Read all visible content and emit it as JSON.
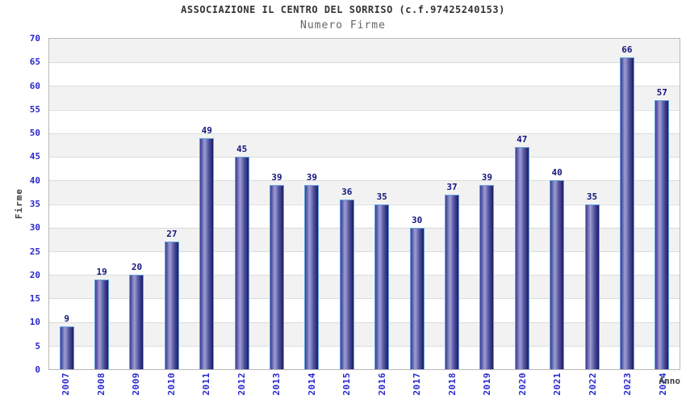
{
  "chart_data": {
    "type": "bar",
    "title": "ASSOCIAZIONE IL CENTRO DEL SORRISO (c.f.97425240153)",
    "subtitle": "Numero Firme",
    "xlabel": "Anno",
    "ylabel": "Firme",
    "categories": [
      "2007",
      "2008",
      "2009",
      "2010",
      "2011",
      "2012",
      "2013",
      "2014",
      "2015",
      "2016",
      "2017",
      "2018",
      "2019",
      "2020",
      "2021",
      "2022",
      "2023",
      "2024"
    ],
    "values": [
      9,
      19,
      20,
      27,
      49,
      45,
      39,
      39,
      36,
      35,
      30,
      37,
      39,
      47,
      40,
      35,
      66,
      57
    ],
    "ylim": [
      0,
      70
    ],
    "ytick_step": 5,
    "grid": "horizontal-bands",
    "legend": "none"
  },
  "colors": {
    "tick_blue": "#2828cf",
    "value_navy": "#14147d",
    "bar_border": "#62a1dd",
    "bar_grad_start": "#3d3d92",
    "bar_grad_light": "#9e9ed6",
    "bar_grad_mid": "#55559e",
    "bar_grad_end": "#1b1b6a",
    "band_gray": "#f2f2f2",
    "grid_line": "#dcdcdc",
    "plot_border": "#b9b9b9",
    "title_color": "#333333",
    "subtitle_color": "#666666",
    "axis_title_color": "#3d3d3d"
  }
}
